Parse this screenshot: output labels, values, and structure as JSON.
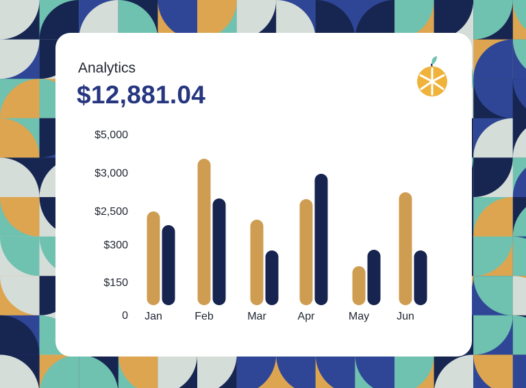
{
  "header": {
    "label": "Analytics",
    "amount": "$12,881.04"
  },
  "logo": {
    "icon": "orange-slice-icon",
    "leaf_color": "#6fc1b0",
    "body_color": "#efb33c"
  },
  "colors": {
    "series_a": "#cf9d52",
    "series_b": "#16244f",
    "accent": "#26367f"
  },
  "chart_data": {
    "type": "bar",
    "title": "",
    "xlabel": "",
    "ylabel": "",
    "categories": [
      "Jan",
      "Feb",
      "Mar",
      "Apr",
      "May",
      "Jun"
    ],
    "y_ticks": [
      "0",
      "$150",
      "$300",
      "$2,500",
      "$3,000",
      "$5,000"
    ],
    "y_tick_positions": [
      0,
      1,
      2,
      3,
      4,
      5
    ],
    "series": [
      {
        "values": [
          2.74,
          4.28,
          2.5,
          3.1,
          1.14,
          3.3
        ]
      },
      {
        "values": [
          2.34,
          3.12,
          1.6,
          3.84,
          1.62,
          1.6
        ]
      }
    ],
    "ylim": [
      0,
      5
    ]
  }
}
